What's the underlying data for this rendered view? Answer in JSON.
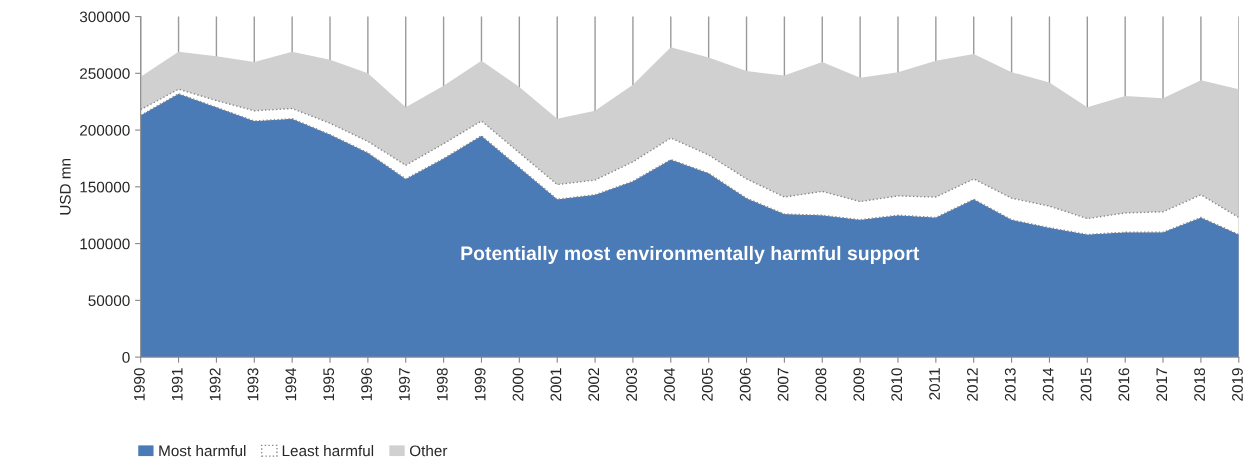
{
  "chart_data": {
    "type": "area",
    "stacked": true,
    "categories": [
      "1990",
      "1991",
      "1992",
      "1993",
      "1994",
      "1995",
      "1996",
      "1997",
      "1998",
      "1999",
      "2000",
      "2001",
      "2002",
      "2003",
      "2004",
      "2005",
      "2006",
      "2007",
      "2008",
      "2009",
      "2010",
      "2011",
      "2012",
      "2013",
      "2014",
      "2015",
      "2016",
      "2017",
      "2018",
      "2019"
    ],
    "series": [
      {
        "name": "Most harmful",
        "color": "#4a7bb7",
        "values": [
          213000,
          232000,
          220000,
          208000,
          210000,
          196000,
          180000,
          157000,
          175000,
          195000,
          167000,
          139000,
          143000,
          155000,
          174000,
          162000,
          140000,
          126000,
          125000,
          121000,
          125000,
          123000,
          139000,
          121000,
          114000,
          108000,
          110000,
          110000,
          123000,
          108000
        ]
      },
      {
        "name": "Least harmful",
        "color": "#ffffff",
        "line_style": "dotted",
        "values": [
          5000,
          4000,
          6000,
          9000,
          9000,
          10000,
          10000,
          12000,
          13000,
          13000,
          13000,
          13000,
          13000,
          17000,
          19000,
          16000,
          17000,
          15000,
          21000,
          16000,
          17000,
          18000,
          18000,
          19000,
          19000,
          14000,
          17000,
          18000,
          20000,
          15000
        ]
      },
      {
        "name": "Other",
        "color": "#d0d0d0",
        "values": [
          29000,
          33000,
          39000,
          43000,
          50000,
          56000,
          60000,
          51000,
          51000,
          53000,
          58000,
          58000,
          61000,
          68000,
          80000,
          86000,
          95000,
          107000,
          114000,
          109000,
          109000,
          120000,
          110000,
          111000,
          109000,
          98000,
          103000,
          100000,
          101000,
          113000
        ]
      }
    ],
    "ylabel": "USD mn",
    "ylim": [
      0,
      300000
    ],
    "yticks": [
      0,
      50000,
      100000,
      150000,
      200000,
      250000,
      300000
    ],
    "grid": "x",
    "legend": "bottom left",
    "annotations": [
      "Potentially most environmentally harmful support"
    ]
  }
}
